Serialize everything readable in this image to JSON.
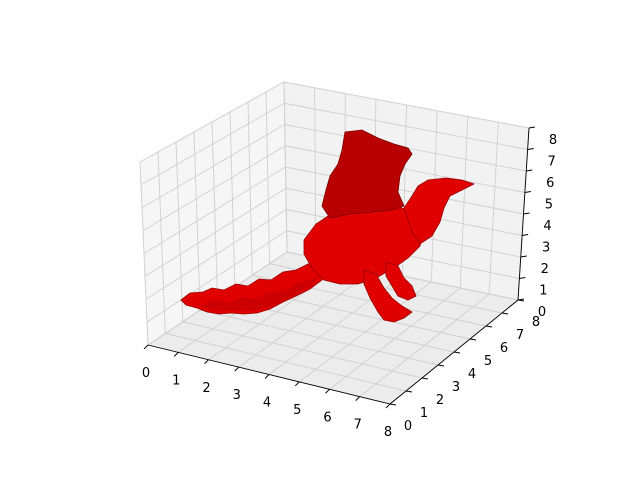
{
  "chart_data": {
    "type": "voxels",
    "title": "",
    "xlabel": "",
    "ylabel": "",
    "zlabel": "",
    "xlim": [
      0,
      8
    ],
    "ylim": [
      0,
      8
    ],
    "zlim": [
      0,
      8
    ],
    "x_ticks": [
      "0",
      "1",
      "2",
      "3",
      "4",
      "5",
      "6",
      "7",
      "8"
    ],
    "y_ticks": [
      "0",
      "1",
      "2",
      "3",
      "4",
      "5",
      "6",
      "7",
      "8"
    ],
    "z_ticks": [
      "0",
      "1",
      "2",
      "3",
      "4",
      "5",
      "6",
      "7",
      "8"
    ],
    "grid": true,
    "voxel_color": "#ff0000",
    "edge_color": "#8b0000",
    "shape": "dragon"
  }
}
